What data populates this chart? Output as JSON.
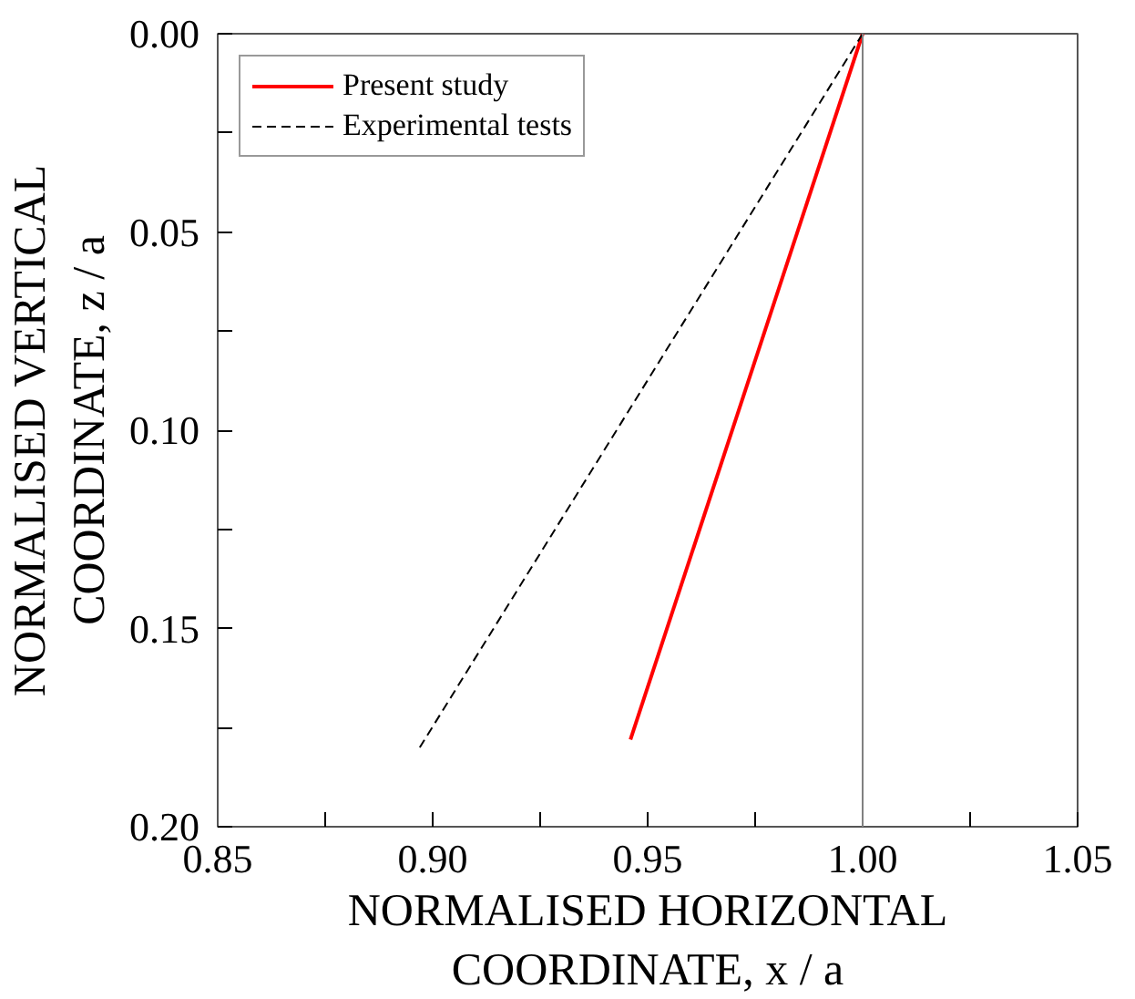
{
  "chart_data": {
    "type": "line",
    "xlabel": "NORMALISED HORIZONTAL COORDINATE, x / a",
    "ylabel": "NORMALISED VERTICAL COORDINATE, z / a",
    "series": [
      {
        "name": "Present study",
        "color": "#ff0000",
        "line_style": "solid",
        "x": [
          1.0,
          0.946
        ],
        "values": [
          0.0,
          0.178
        ]
      },
      {
        "name": "Experimental tests",
        "color": "#000000",
        "line_style": "dashed",
        "x": [
          1.0,
          0.897
        ],
        "values": [
          0.0,
          0.18
        ]
      }
    ],
    "xlim": [
      0.85,
      1.05
    ],
    "ylim": [
      0.2,
      0.0
    ],
    "xticks": [
      {
        "value": 0.85,
        "label": "0.85"
      },
      {
        "value": 0.875,
        "label": null
      },
      {
        "value": 0.9,
        "label": "0.90"
      },
      {
        "value": 0.925,
        "label": null
      },
      {
        "value": 0.95,
        "label": "0.95"
      },
      {
        "value": 0.975,
        "label": null
      },
      {
        "value": 1.0,
        "label": "1.00"
      },
      {
        "value": 1.025,
        "label": null
      },
      {
        "value": 1.05,
        "label": "1.05"
      }
    ],
    "yticks": [
      {
        "value": 0.0,
        "label": "0.00"
      },
      {
        "value": 0.025,
        "label": null
      },
      {
        "value": 0.05,
        "label": "0.05"
      },
      {
        "value": 0.075,
        "label": null
      },
      {
        "value": 0.1,
        "label": "0.10"
      },
      {
        "value": 0.125,
        "label": null
      },
      {
        "value": 0.15,
        "label": "0.15"
      },
      {
        "value": 0.175,
        "label": null
      },
      {
        "value": 0.2,
        "label": "0.20"
      }
    ],
    "ref_lines": [
      {
        "axis": "x",
        "value": 1.0,
        "color": "#808080"
      }
    ],
    "grid": false,
    "legend": "top left"
  }
}
